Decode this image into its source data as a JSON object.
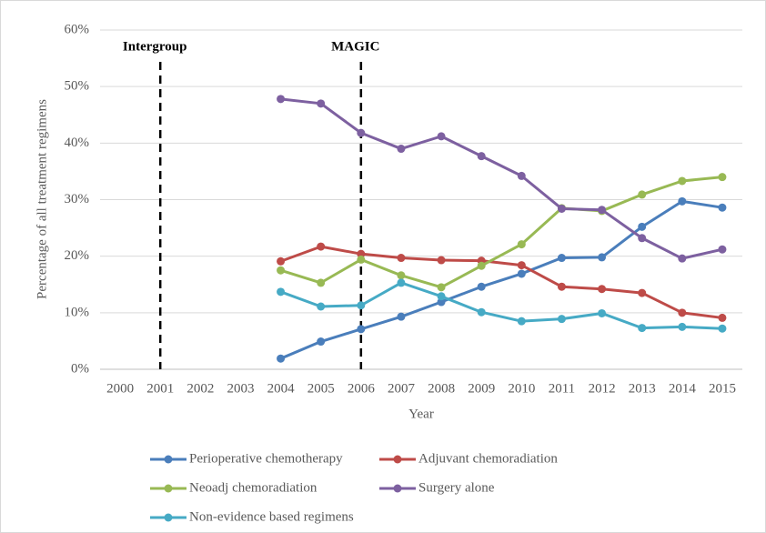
{
  "chart_data": {
    "type": "line",
    "xlabel": "Year",
    "ylabel": "Percentage of all treatment regimens",
    "categories": [
      "2000",
      "2001",
      "2002",
      "2003",
      "2004",
      "2005",
      "2006",
      "2007",
      "2008",
      "2009",
      "2010",
      "2011",
      "2012",
      "2013",
      "2014",
      "2015"
    ],
    "ylim": [
      0,
      60
    ],
    "yticks": [
      {
        "value": 0,
        "label": "0%"
      },
      {
        "value": 10,
        "label": "10%"
      },
      {
        "value": 20,
        "label": "20%"
      },
      {
        "value": 30,
        "label": "30%"
      },
      {
        "value": 40,
        "label": "40%"
      },
      {
        "value": 50,
        "label": "50%"
      },
      {
        "value": 60,
        "label": "60%"
      }
    ],
    "grid": true,
    "legend": "bottom",
    "annotations": [
      {
        "text": "Intergroup",
        "x": "2001"
      },
      {
        "text": "MAGIC",
        "x": "2006"
      }
    ],
    "series": [
      {
        "name": "Perioperative chemotherapy",
        "color": "#4a7ebb",
        "values": [
          null,
          null,
          null,
          null,
          1.9,
          4.9,
          7.1,
          9.3,
          11.9,
          14.6,
          16.9,
          19.7,
          19.8,
          25.2,
          29.7,
          28.6
        ]
      },
      {
        "name": "Adjuvant chemoradiation",
        "color": "#be4b48",
        "values": [
          null,
          null,
          null,
          null,
          19.1,
          21.7,
          20.4,
          19.7,
          19.3,
          19.2,
          18.4,
          14.6,
          14.2,
          13.5,
          10.0,
          9.1
        ]
      },
      {
        "name": "Neoadj chemoradiation",
        "color": "#98b954",
        "values": [
          null,
          null,
          null,
          null,
          17.5,
          15.3,
          19.4,
          16.6,
          14.5,
          18.3,
          22.1,
          28.5,
          28.0,
          30.9,
          33.3,
          34.0
        ]
      },
      {
        "name": "Surgery alone",
        "color": "#7d60a0",
        "values": [
          null,
          null,
          null,
          null,
          47.8,
          47.0,
          41.8,
          39.0,
          41.2,
          37.7,
          34.2,
          28.4,
          28.2,
          23.2,
          19.6,
          21.2
        ]
      },
      {
        "name": "Non-evidence based regimens",
        "color": "#46aac5",
        "values": [
          null,
          null,
          null,
          null,
          13.7,
          11.1,
          11.3,
          15.3,
          12.9,
          10.1,
          8.5,
          8.9,
          9.9,
          7.3,
          7.5,
          7.2
        ]
      }
    ]
  }
}
